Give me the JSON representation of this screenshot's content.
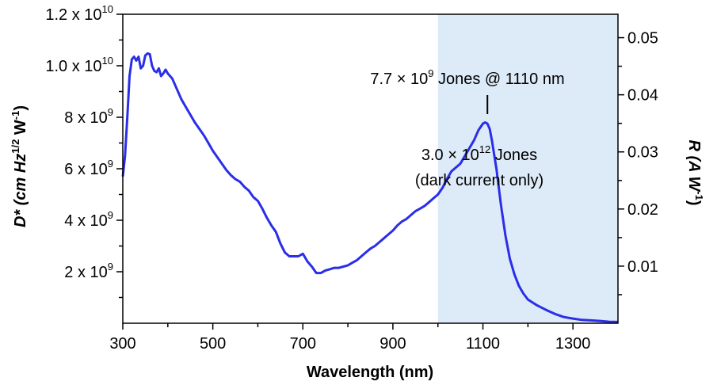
{
  "chart_data": {
    "type": "line",
    "title": "",
    "xlabel": "Wavelength (nm)",
    "ylabel_left": {
      "main": "D* (cm Hz",
      "sup1": "1/2",
      "mid": " W",
      "sup2": "-1",
      "end": ")"
    },
    "ylabel_right": {
      "main": "R (A W",
      "sup": "-1",
      "end": ")"
    },
    "xlim": [
      300,
      1400
    ],
    "ylim_left": [
      0,
      12000000000.0
    ],
    "ylim_right": [
      0,
      0.0541
    ],
    "grid": false,
    "x_ticks": [
      {
        "value": 300,
        "label": "300"
      },
      {
        "value": 500,
        "label": "500"
      },
      {
        "value": 700,
        "label": "700"
      },
      {
        "value": 900,
        "label": "900"
      },
      {
        "value": 1100,
        "label": "1100"
      },
      {
        "value": 1300,
        "label": "1300"
      }
    ],
    "x_minor_ticks": [
      400,
      600,
      800,
      1000,
      1200
    ],
    "y_left_ticks": [
      {
        "value": 2000000000.0,
        "mantissa": "2 x 10",
        "exp": "9"
      },
      {
        "value": 4000000000.0,
        "mantissa": "4 x 10",
        "exp": "9"
      },
      {
        "value": 6000000000.0,
        "mantissa": "6 x 10",
        "exp": "9"
      },
      {
        "value": 8000000000.0,
        "mantissa": "8 x 10",
        "exp": "9"
      },
      {
        "value": 10000000000.0,
        "mantissa": "1.0 x 10",
        "exp": "10"
      },
      {
        "value": 12000000000.0,
        "mantissa": "1.2 x 10",
        "exp": "10"
      }
    ],
    "y_left_minor_ticks": [
      1000000000.0,
      3000000000.0,
      5000000000.0,
      7000000000.0,
      9000000000.0,
      11000000000.0
    ],
    "y_right_ticks": [
      {
        "value": 0.01,
        "label": "0.01"
      },
      {
        "value": 0.02,
        "label": "0.02"
      },
      {
        "value": 0.03,
        "label": "0.03"
      },
      {
        "value": 0.04,
        "label": "0.04"
      },
      {
        "value": 0.05,
        "label": "0.05"
      }
    ],
    "y_right_minor_ticks": [
      0.005,
      0.015,
      0.025,
      0.035,
      0.045
    ],
    "shaded_region": {
      "x_start": 1000,
      "x_end": 1400,
      "color": "#ddeaf8"
    },
    "series": [
      {
        "color": "#2a2ee8",
        "x": [
          300,
          305,
          310,
          315,
          320,
          325,
          330,
          335,
          340,
          345,
          350,
          355,
          360,
          365,
          370,
          375,
          380,
          385,
          390,
          395,
          400,
          410,
          420,
          430,
          440,
          450,
          460,
          470,
          480,
          490,
          500,
          510,
          520,
          530,
          540,
          550,
          560,
          570,
          580,
          590,
          600,
          610,
          620,
          630,
          640,
          650,
          660,
          670,
          680,
          690,
          700,
          710,
          720,
          730,
          740,
          750,
          760,
          770,
          780,
          790,
          800,
          810,
          820,
          830,
          840,
          850,
          860,
          870,
          880,
          890,
          900,
          910,
          920,
          930,
          940,
          950,
          960,
          970,
          980,
          990,
          1000,
          1010,
          1020,
          1030,
          1040,
          1050,
          1060,
          1070,
          1080,
          1090,
          1100,
          1105,
          1110,
          1115,
          1120,
          1130,
          1140,
          1150,
          1160,
          1170,
          1180,
          1190,
          1200,
          1220,
          1240,
          1260,
          1280,
          1300,
          1320,
          1340,
          1360,
          1380,
          1400
        ],
        "y": [
          5700000000.0,
          6500000000.0,
          8000000000.0,
          9600000000.0,
          10250000000.0,
          10350000000.0,
          10200000000.0,
          10350000000.0,
          9900000000.0,
          10000000000.0,
          10400000000.0,
          10480000000.0,
          10450000000.0,
          10000000000.0,
          9800000000.0,
          9750000000.0,
          9900000000.0,
          9600000000.0,
          9700000000.0,
          9850000000.0,
          9700000000.0,
          9500000000.0,
          9100000000.0,
          8700000000.0,
          8400000000.0,
          8100000000.0,
          7800000000.0,
          7550000000.0,
          7300000000.0,
          7000000000.0,
          6700000000.0,
          6450000000.0,
          6200000000.0,
          5950000000.0,
          5750000000.0,
          5600000000.0,
          5500000000.0,
          5300000000.0,
          5150000000.0,
          4900000000.0,
          4750000000.0,
          4450000000.0,
          4100000000.0,
          3800000000.0,
          3550000000.0,
          3100000000.0,
          2750000000.0,
          2600000000.0,
          2600000000.0,
          2600000000.0,
          2700000000.0,
          2400000000.0,
          2200000000.0,
          1950000000.0,
          1950000000.0,
          2050000000.0,
          2100000000.0,
          2150000000.0,
          2150000000.0,
          2200000000.0,
          2250000000.0,
          2350000000.0,
          2450000000.0,
          2600000000.0,
          2750000000.0,
          2900000000.0,
          3000000000.0,
          3150000000.0,
          3300000000.0,
          3450000000.0,
          3600000000.0,
          3800000000.0,
          3950000000.0,
          4050000000.0,
          4200000000.0,
          4350000000.0,
          4450000000.0,
          4550000000.0,
          4700000000.0,
          4850000000.0,
          5000000000.0,
          5250000000.0,
          5600000000.0,
          5900000000.0,
          6050000000.0,
          6200000000.0,
          6500000000.0,
          6800000000.0,
          7100000000.0,
          7500000000.0,
          7750000000.0,
          7800000000.0,
          7750000000.0,
          7550000000.0,
          7100000000.0,
          6000000000.0,
          4600000000.0,
          3400000000.0,
          2500000000.0,
          1900000000.0,
          1450000000.0,
          1150000000.0,
          920000000.0,
          700000000.0,
          520000000.0,
          360000000.0,
          240000000.0,
          180000000.0,
          130000000.0,
          110000000.0,
          90000000.0,
          60000000.0,
          50000000.0
        ]
      }
    ],
    "annotations": [
      {
        "id": "peak",
        "mantissa": "7.7 × 10",
        "exp": "9",
        "suffix": " Jones @ 1110 nm",
        "x": 1110
      },
      {
        "id": "dark1",
        "mantissa": "3.0 × 10",
        "exp": "12",
        "suffix": " Jones"
      },
      {
        "id": "dark2",
        "text": "(dark current only)"
      }
    ]
  }
}
